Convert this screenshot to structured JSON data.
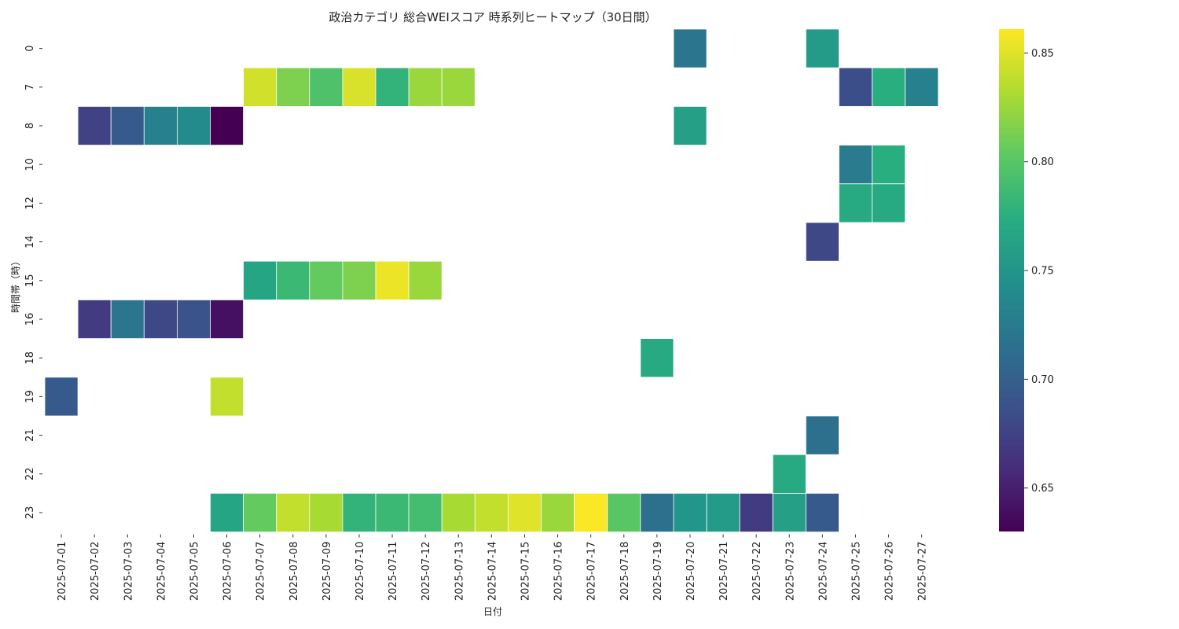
{
  "chart_data": {
    "type": "heatmap",
    "title": "政治カテゴリ 総合WEIスコア 時系列ヒートマップ（30日間）",
    "xlabel": "日付",
    "ylabel": "時間帯（時）",
    "colormap": "viridis",
    "vmin": 0.63,
    "vmax": 0.861,
    "colorbar_ticks": [
      "0.65",
      "0.70",
      "0.75",
      "0.80",
      "0.85"
    ],
    "x": [
      "2025-07-01",
      "2025-07-02",
      "2025-07-03",
      "2025-07-04",
      "2025-07-05",
      "2025-07-06",
      "2025-07-07",
      "2025-07-08",
      "2025-07-09",
      "2025-07-10",
      "2025-07-11",
      "2025-07-12",
      "2025-07-13",
      "2025-07-14",
      "2025-07-15",
      "2025-07-16",
      "2025-07-17",
      "2025-07-18",
      "2025-07-19",
      "2025-07-20",
      "2025-07-21",
      "2025-07-22",
      "2025-07-23",
      "2025-07-24",
      "2025-07-25",
      "2025-07-26",
      "2025-07-27"
    ],
    "y": [
      "0",
      "7",
      "8",
      "10",
      "12",
      "14",
      "15",
      "16",
      "18",
      "19",
      "21",
      "22",
      "23"
    ],
    "values": [
      [
        null,
        null,
        null,
        null,
        null,
        null,
        null,
        null,
        null,
        null,
        null,
        null,
        null,
        null,
        null,
        null,
        null,
        null,
        null,
        0.72,
        null,
        null,
        null,
        0.755,
        null,
        null,
        null
      ],
      [
        null,
        null,
        null,
        null,
        null,
        null,
        0.845,
        0.815,
        0.795,
        0.848,
        0.78,
        0.825,
        0.825,
        null,
        null,
        null,
        null,
        null,
        null,
        null,
        null,
        null,
        null,
        null,
        0.685,
        0.775,
        0.73
      ],
      [
        null,
        0.675,
        0.695,
        0.73,
        0.74,
        0.63,
        null,
        null,
        null,
        null,
        null,
        null,
        null,
        null,
        null,
        null,
        null,
        null,
        null,
        0.76,
        null,
        null,
        null,
        null,
        null,
        null,
        null
      ],
      [
        null,
        null,
        null,
        null,
        null,
        null,
        null,
        null,
        null,
        null,
        null,
        null,
        null,
        null,
        null,
        null,
        null,
        null,
        null,
        null,
        null,
        null,
        null,
        null,
        0.725,
        0.775,
        null
      ],
      [
        null,
        null,
        null,
        null,
        null,
        null,
        null,
        null,
        null,
        null,
        null,
        null,
        null,
        null,
        null,
        null,
        null,
        null,
        null,
        null,
        null,
        null,
        null,
        null,
        0.77,
        0.77,
        null
      ],
      [
        null,
        null,
        null,
        null,
        null,
        null,
        null,
        null,
        null,
        null,
        null,
        null,
        null,
        null,
        null,
        null,
        null,
        null,
        null,
        null,
        null,
        null,
        null,
        0.68,
        null,
        null,
        null
      ],
      [
        null,
        null,
        null,
        null,
        null,
        null,
        0.765,
        0.785,
        0.805,
        0.815,
        0.855,
        0.825,
        null,
        null,
        null,
        null,
        null,
        null,
        null,
        null,
        null,
        null,
        null,
        null,
        null,
        null,
        null
      ],
      [
        null,
        0.67,
        0.72,
        0.68,
        0.69,
        0.64,
        null,
        null,
        null,
        null,
        null,
        null,
        null,
        null,
        null,
        null,
        null,
        null,
        null,
        null,
        null,
        null,
        null,
        null,
        null,
        null,
        null
      ],
      [
        null,
        null,
        null,
        null,
        null,
        null,
        null,
        null,
        null,
        null,
        null,
        null,
        null,
        null,
        null,
        null,
        null,
        null,
        0.77,
        null,
        null,
        null,
        null,
        null,
        null,
        null,
        null
      ],
      [
        0.695,
        null,
        null,
        null,
        null,
        0.84,
        null,
        null,
        null,
        null,
        null,
        null,
        null,
        null,
        null,
        null,
        null,
        null,
        null,
        null,
        null,
        null,
        null,
        null,
        null,
        null,
        null
      ],
      [
        null,
        null,
        null,
        null,
        null,
        null,
        null,
        null,
        null,
        null,
        null,
        null,
        null,
        null,
        null,
        null,
        null,
        null,
        null,
        null,
        null,
        null,
        null,
        0.715,
        null,
        null,
        null
      ],
      [
        null,
        null,
        null,
        null,
        null,
        null,
        null,
        null,
        null,
        null,
        null,
        null,
        null,
        null,
        null,
        null,
        null,
        null,
        null,
        null,
        null,
        null,
        0.77,
        null,
        null,
        null,
        null
      ],
      [
        null,
        null,
        null,
        null,
        null,
        0.765,
        0.805,
        0.84,
        0.83,
        0.78,
        0.785,
        0.79,
        0.83,
        0.84,
        0.85,
        0.825,
        0.86,
        0.8,
        0.715,
        0.75,
        0.755,
        0.67,
        0.76,
        0.695,
        null,
        null,
        null
      ]
    ]
  }
}
